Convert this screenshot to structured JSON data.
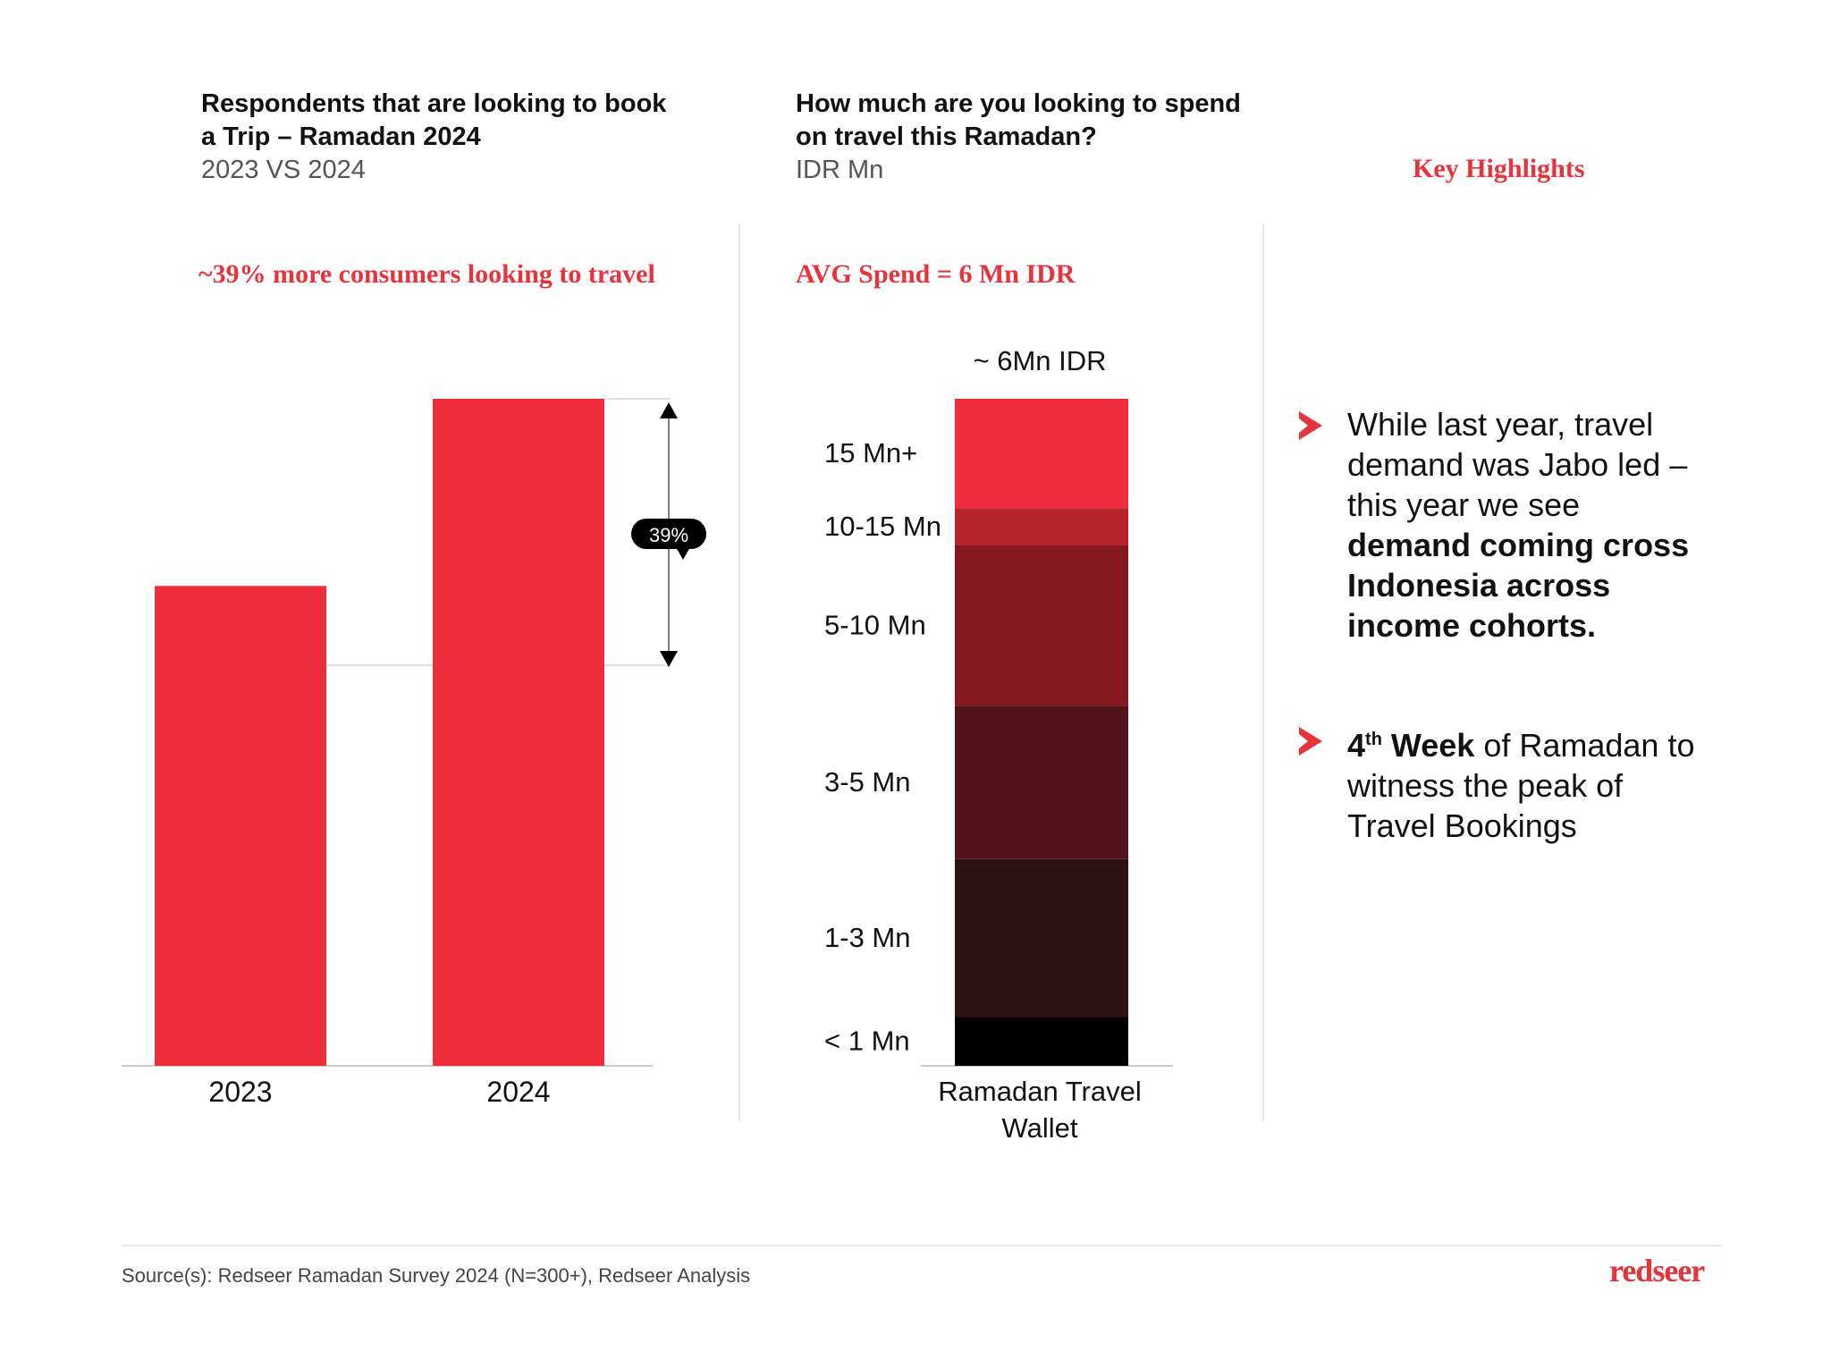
{
  "left_panel": {
    "title_line1": "Respondents that are looking to book",
    "title_line2": "a Trip – Ramadan 2024",
    "subtitle": "2023 VS 2024",
    "headline": "~39% more consumers looking to travel"
  },
  "middle_panel": {
    "title_line1": "How much are you looking to spend",
    "title_line2": "on travel this Ramadan?",
    "subtitle": "IDR Mn",
    "headline": "AVG Spend = 6 Mn IDR"
  },
  "right_panel": {
    "heading": "Key Highlights",
    "point1_plain": "While last year, travel demand was Jabo led – this year we see ",
    "point1_bold": "demand coming cross Indonesia across income cohorts.",
    "point2_bold_num": "4",
    "point2_sup": "th",
    "point2_bold_word": " Week",
    "point2_plain": " of Ramadan to witness the peak of Travel Bookings"
  },
  "footer": {
    "source": "Source(s): Redseer Ramadan Survey 2024 (N=300+), Redseer Analysis",
    "logo_text": "redseer"
  },
  "colors": {
    "accent": "#e8323c",
    "bar": "#ee2e3b"
  },
  "chart_data": [
    {
      "type": "bar",
      "categories": [
        "2023",
        "2024"
      ],
      "values": [
        100,
        139
      ],
      "delta_label": "39%",
      "ylim": [
        0,
        139
      ]
    },
    {
      "type": "bar",
      "stacked": true,
      "categories": [
        "Ramadan Travel Wallet"
      ],
      "top_label": "~ 6Mn IDR",
      "segments": [
        {
          "label": "< 1 Mn",
          "share": 5.4,
          "color": "#000000"
        },
        {
          "label": "1-3 Mn",
          "share": 17.5,
          "color": "#2e1214"
        },
        {
          "label": "3-5 Mn",
          "share": 17.0,
          "color": "#52141a"
        },
        {
          "label": "5-10 Mn",
          "share": 17.8,
          "color": "#86181f"
        },
        {
          "label": "10-15 Mn",
          "share": 4.1,
          "color": "#b8232c"
        },
        {
          "label": "15 Mn+",
          "share": 12.1,
          "color": "#ef2f3c"
        }
      ]
    }
  ]
}
